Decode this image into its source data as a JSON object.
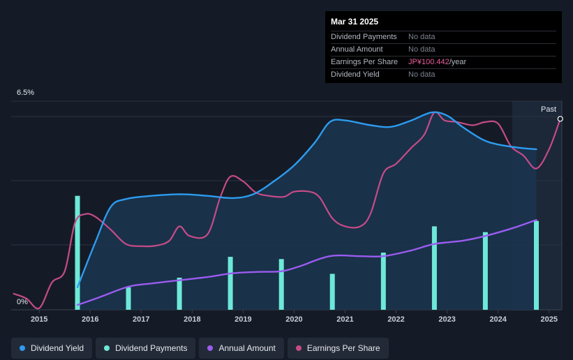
{
  "tooltip": {
    "date": "Mar 31 2025",
    "rows": [
      {
        "label": "Dividend Payments",
        "value": "No data"
      },
      {
        "label": "Annual Amount",
        "value": "No data"
      },
      {
        "label": "Earnings Per Share",
        "value": "JP¥100.442",
        "unit": "/year"
      },
      {
        "label": "Dividend Yield",
        "value": "No data"
      }
    ]
  },
  "legend": [
    {
      "label": "Dividend Yield",
      "color": "#2d9cf0"
    },
    {
      "label": "Dividend Payments",
      "color": "#6ee8d8"
    },
    {
      "label": "Annual Amount",
      "color": "#9b5cf0"
    },
    {
      "label": "Earnings Per Share",
      "color": "#c64b88"
    }
  ],
  "chart_data": {
    "type": "line",
    "title": "",
    "y_top_label": "6.5%",
    "y_bottom_label": "0%",
    "ylim": [
      0,
      6.5
    ],
    "xlim": [
      2014.45,
      2025.25
    ],
    "past_label": "Past",
    "x_ticks": [
      "2015",
      "2016",
      "2017",
      "2018",
      "2019",
      "2020",
      "2021",
      "2022",
      "2023",
      "2024",
      "2025"
    ],
    "series": [
      {
        "name": "Dividend Yield",
        "color": "#2d9cf0",
        "unit": "%",
        "points": [
          [
            2015.75,
            0.7
          ],
          [
            2016.1,
            2.1
          ],
          [
            2016.4,
            3.2
          ],
          [
            2016.7,
            3.45
          ],
          [
            2017.2,
            3.55
          ],
          [
            2017.8,
            3.6
          ],
          [
            2018.3,
            3.55
          ],
          [
            2018.8,
            3.48
          ],
          [
            2019.2,
            3.6
          ],
          [
            2019.6,
            4.0
          ],
          [
            2020.0,
            4.5
          ],
          [
            2020.4,
            5.2
          ],
          [
            2020.7,
            5.85
          ],
          [
            2021.0,
            5.9
          ],
          [
            2021.5,
            5.75
          ],
          [
            2021.9,
            5.7
          ],
          [
            2022.3,
            5.9
          ],
          [
            2022.7,
            6.15
          ],
          [
            2023.0,
            6.05
          ],
          [
            2023.3,
            5.7
          ],
          [
            2023.7,
            5.3
          ],
          [
            2024.0,
            5.15
          ],
          [
            2024.4,
            5.05
          ],
          [
            2024.75,
            5.0
          ]
        ]
      },
      {
        "name": "Dividend Payments",
        "color": "#6ee8d8",
        "type": "bar",
        "points": [
          [
            2015.75,
            3.55
          ],
          [
            2016.75,
            0.7
          ],
          [
            2017.75,
            1.0
          ],
          [
            2018.75,
            1.65
          ],
          [
            2019.75,
            1.58
          ],
          [
            2020.75,
            1.12
          ],
          [
            2021.75,
            1.78
          ],
          [
            2022.75,
            2.6
          ],
          [
            2023.75,
            2.42
          ],
          [
            2024.75,
            2.77
          ]
        ]
      },
      {
        "name": "Annual Amount",
        "color": "#9b5cf0",
        "points": [
          [
            2015.75,
            0.15
          ],
          [
            2016.2,
            0.4
          ],
          [
            2016.75,
            0.72
          ],
          [
            2017.2,
            0.82
          ],
          [
            2017.75,
            0.92
          ],
          [
            2018.3,
            1.02
          ],
          [
            2018.8,
            1.14
          ],
          [
            2019.3,
            1.18
          ],
          [
            2019.75,
            1.2
          ],
          [
            2020.1,
            1.35
          ],
          [
            2020.7,
            1.67
          ],
          [
            2021.3,
            1.67
          ],
          [
            2021.75,
            1.67
          ],
          [
            2022.3,
            1.85
          ],
          [
            2022.75,
            2.05
          ],
          [
            2023.3,
            2.15
          ],
          [
            2023.75,
            2.3
          ],
          [
            2024.3,
            2.55
          ],
          [
            2024.75,
            2.8
          ]
        ]
      },
      {
        "name": "Earnings Per Share",
        "color": "#c64b88",
        "points": [
          [
            2014.5,
            0.5
          ],
          [
            2014.75,
            0.35
          ],
          [
            2015.0,
            0.05
          ],
          [
            2015.25,
            0.85
          ],
          [
            2015.5,
            1.2
          ],
          [
            2015.7,
            2.7
          ],
          [
            2015.9,
            2.98
          ],
          [
            2016.1,
            2.9
          ],
          [
            2016.4,
            2.5
          ],
          [
            2016.7,
            2.05
          ],
          [
            2017.0,
            1.98
          ],
          [
            2017.3,
            2.0
          ],
          [
            2017.55,
            2.15
          ],
          [
            2017.75,
            2.6
          ],
          [
            2017.95,
            2.3
          ],
          [
            2018.3,
            2.35
          ],
          [
            2018.55,
            3.5
          ],
          [
            2018.75,
            4.15
          ],
          [
            2019.0,
            4.0
          ],
          [
            2019.25,
            3.65
          ],
          [
            2019.5,
            3.55
          ],
          [
            2019.8,
            3.52
          ],
          [
            2020.0,
            3.68
          ],
          [
            2020.3,
            3.68
          ],
          [
            2020.5,
            3.5
          ],
          [
            2020.75,
            2.85
          ],
          [
            2021.0,
            2.6
          ],
          [
            2021.3,
            2.6
          ],
          [
            2021.5,
            3.0
          ],
          [
            2021.75,
            4.25
          ],
          [
            2022.0,
            4.55
          ],
          [
            2022.3,
            5.05
          ],
          [
            2022.55,
            5.45
          ],
          [
            2022.75,
            6.15
          ],
          [
            2022.95,
            5.9
          ],
          [
            2023.2,
            5.85
          ],
          [
            2023.5,
            5.75
          ],
          [
            2023.75,
            5.85
          ],
          [
            2024.0,
            5.8
          ],
          [
            2024.25,
            5.1
          ],
          [
            2024.5,
            4.8
          ],
          [
            2024.75,
            4.4
          ],
          [
            2025.0,
            5.0
          ],
          [
            2025.22,
            5.95
          ]
        ]
      }
    ]
  }
}
